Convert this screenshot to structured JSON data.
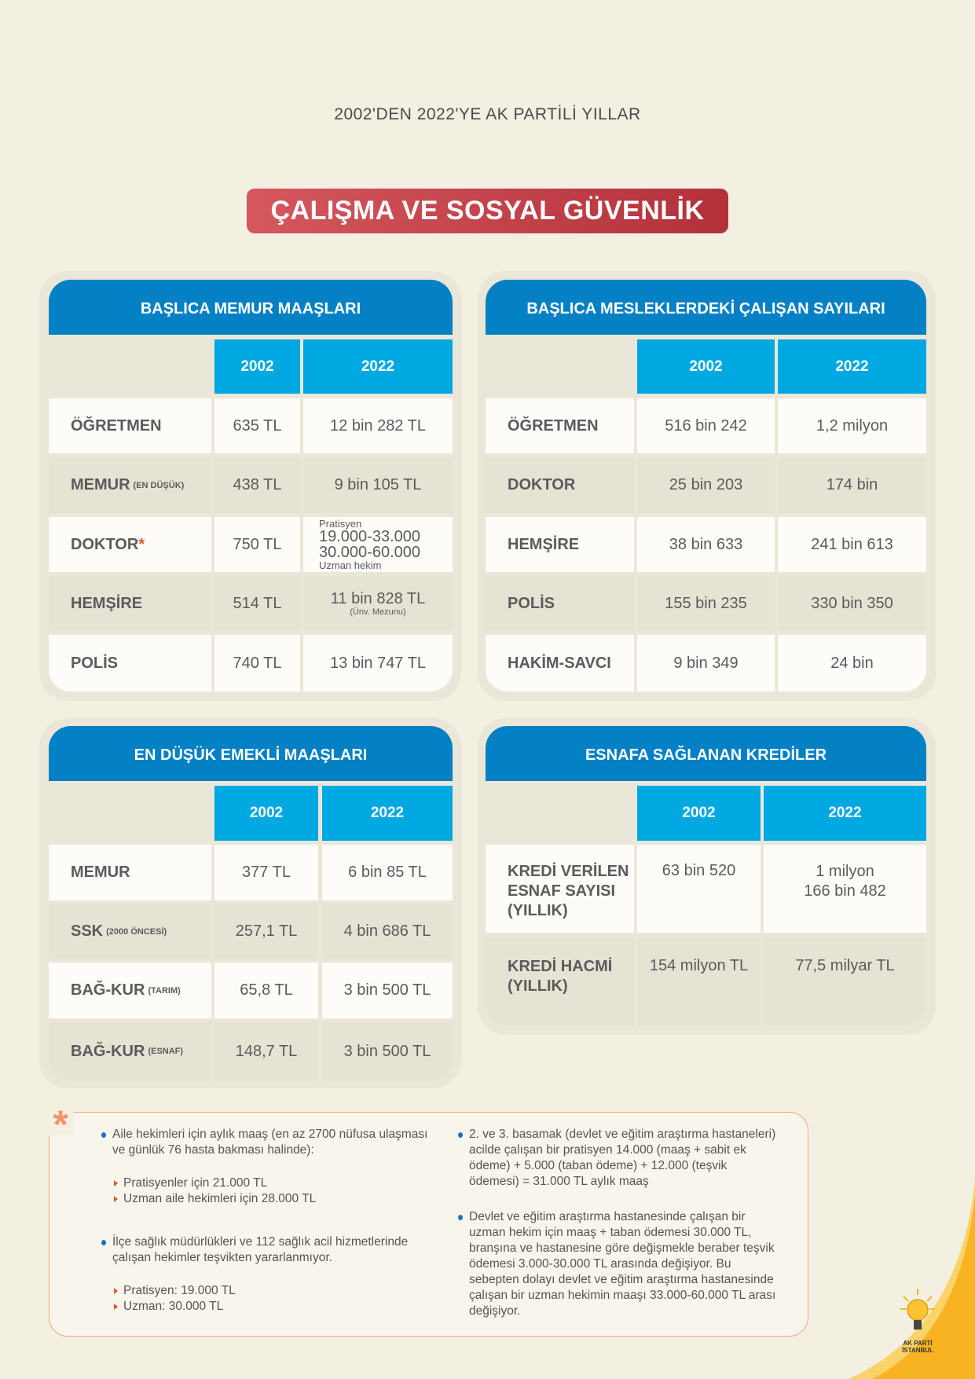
{
  "header": {
    "subtitle": "2002'DEN 2022'YE AK PARTİLİ YILLAR",
    "title": "ÇALIŞMA VE SOSYAL GÜVENLİK"
  },
  "memur": {
    "title": "BAŞLICA MEMUR MAAŞLARI",
    "years": [
      "2002",
      "2022"
    ],
    "rows": [
      {
        "label": "ÖĞRETMEN",
        "v2002": "635 TL",
        "v2022": "12 bin 282 TL"
      },
      {
        "label": "MEMUR",
        "note": "(EN DÜŞÜK)",
        "v2002": "438 TL",
        "v2022": "9 bin 105 TL"
      },
      {
        "label": "DOKTOR",
        "star": "*",
        "v2002": "750 TL",
        "v2022_top": "Pratisyen",
        "v2022_a": "19.000-33.000",
        "v2022_b": "30.000-60.000",
        "v2022_bottom": "Uzman hekim"
      },
      {
        "label": "HEMŞİRE",
        "v2002": "514 TL",
        "v2022": "11 bin 828 TL",
        "v2022_note": "(Ünv. Mezunu)"
      },
      {
        "label": "POLİS",
        "v2002": "740 TL",
        "v2022": "13 bin 747 TL"
      }
    ]
  },
  "calisan": {
    "title": "BAŞLICA MESLEKLERDEKİ ÇALIŞAN SAYILARI",
    "years": [
      "2002",
      "2022"
    ],
    "rows": [
      {
        "label": "ÖĞRETMEN",
        "v2002": "516 bin 242",
        "v2022": "1,2 milyon"
      },
      {
        "label": "DOKTOR",
        "v2002": "25 bin 203",
        "v2022": "174 bin"
      },
      {
        "label": "HEMŞİRE",
        "v2002": "38 bin 633",
        "v2022": "241 bin 613"
      },
      {
        "label": "POLİS",
        "v2002": "155 bin 235",
        "v2022": "330 bin 350"
      },
      {
        "label": "HAKİM-SAVCI",
        "v2002": "9 bin 349",
        "v2022": "24 bin"
      }
    ]
  },
  "emekli": {
    "title": "EN DÜŞÜK EMEKLİ MAAŞLARI",
    "years": [
      "2002",
      "2022"
    ],
    "rows": [
      {
        "label": "MEMUR",
        "note": "",
        "v2002": "377 TL",
        "v2022": "6 bin 85 TL"
      },
      {
        "label": "SSK",
        "note": "(2000 ÖNCESİ)",
        "v2002": "257,1 TL",
        "v2022": "4 bin 686 TL"
      },
      {
        "label": "BAĞ-KUR",
        "note": "(TARIM)",
        "v2002": "65,8 TL",
        "v2022": "3 bin 500 TL"
      },
      {
        "label": "BAĞ-KUR",
        "note": "(ESNAF)",
        "v2002": "148,7 TL",
        "v2022": "3 bin 500 TL"
      }
    ]
  },
  "esnaf": {
    "title": "ESNAFA SAĞLANAN KREDİLER",
    "years": [
      "2002",
      "2022"
    ],
    "rows": [
      {
        "label1": "KREDİ VERİLEN",
        "label2": "ESNAF SAYISI",
        "label3": "(YILLIK)",
        "v2002": "63 bin 520",
        "v2022a": "1 milyon",
        "v2022b": "166 bin 482"
      },
      {
        "label1": "KREDİ HACMİ",
        "label2": "(YILLIK)",
        "v2002": "154 milyon TL",
        "v2022": "77,5 milyar TL"
      }
    ]
  },
  "footnote": {
    "asterisk": "*",
    "left": [
      {
        "type": "bullet",
        "text": "Aile hekimleri için aylık maaş (en az 2700 nüfusa ulaşması ve günlük 76 hasta bakması halinde):"
      },
      {
        "type": "sub",
        "text": "Pratisyenler için 21.000 TL"
      },
      {
        "type": "sub",
        "text": "Uzman aile hekimleri için 28.000 TL"
      },
      {
        "type": "bullet",
        "text": "İlçe sağlık müdürlükleri ve 112 sağlık acil hizmetlerinde çalışan hekimler teşvikten yararlanmıyor."
      },
      {
        "type": "sub",
        "text": "Pratisyen: 19.000 TL"
      },
      {
        "type": "sub",
        "text": "Uzman: 30.000 TL"
      }
    ],
    "right": [
      {
        "type": "bullet",
        "text": "2. ve 3. basamak (devlet ve eğitim araştırma hastaneleri) acilde çalışan bir pratisyen 14.000 (maaş + sabit ek ödeme) + 5.000 (taban ödeme) + 12.000 (teşvik ödemesi) = 31.000 TL aylık maaş"
      },
      {
        "type": "bullet",
        "text": "Devlet ve eğitim araştırma hastanesinde çalışan bir uzman hekim için maaş + taban ödemesi 30.000 TL, branşına ve hastanesine göre değişmekle beraber teşvik ödemesi 3.000-30.000 TL arasında değişiyor. Bu sebepten dolayı devlet ve eğitim araştırma hastanesinde çalışan bir uzman hekimin maaşı 33.000-60.000 TL arası değişiyor."
      }
    ]
  },
  "logo": {
    "line1": "AK PARTİ",
    "line2": "İSTANBUL"
  },
  "colors": {
    "background": "#f3f0e1",
    "header_blue": "#0480c4",
    "year_blue": "#00a8e1",
    "banner_red": "#c3444b",
    "accent_orange": "#e0542a",
    "swoosh_yellow": "#f7b321"
  }
}
